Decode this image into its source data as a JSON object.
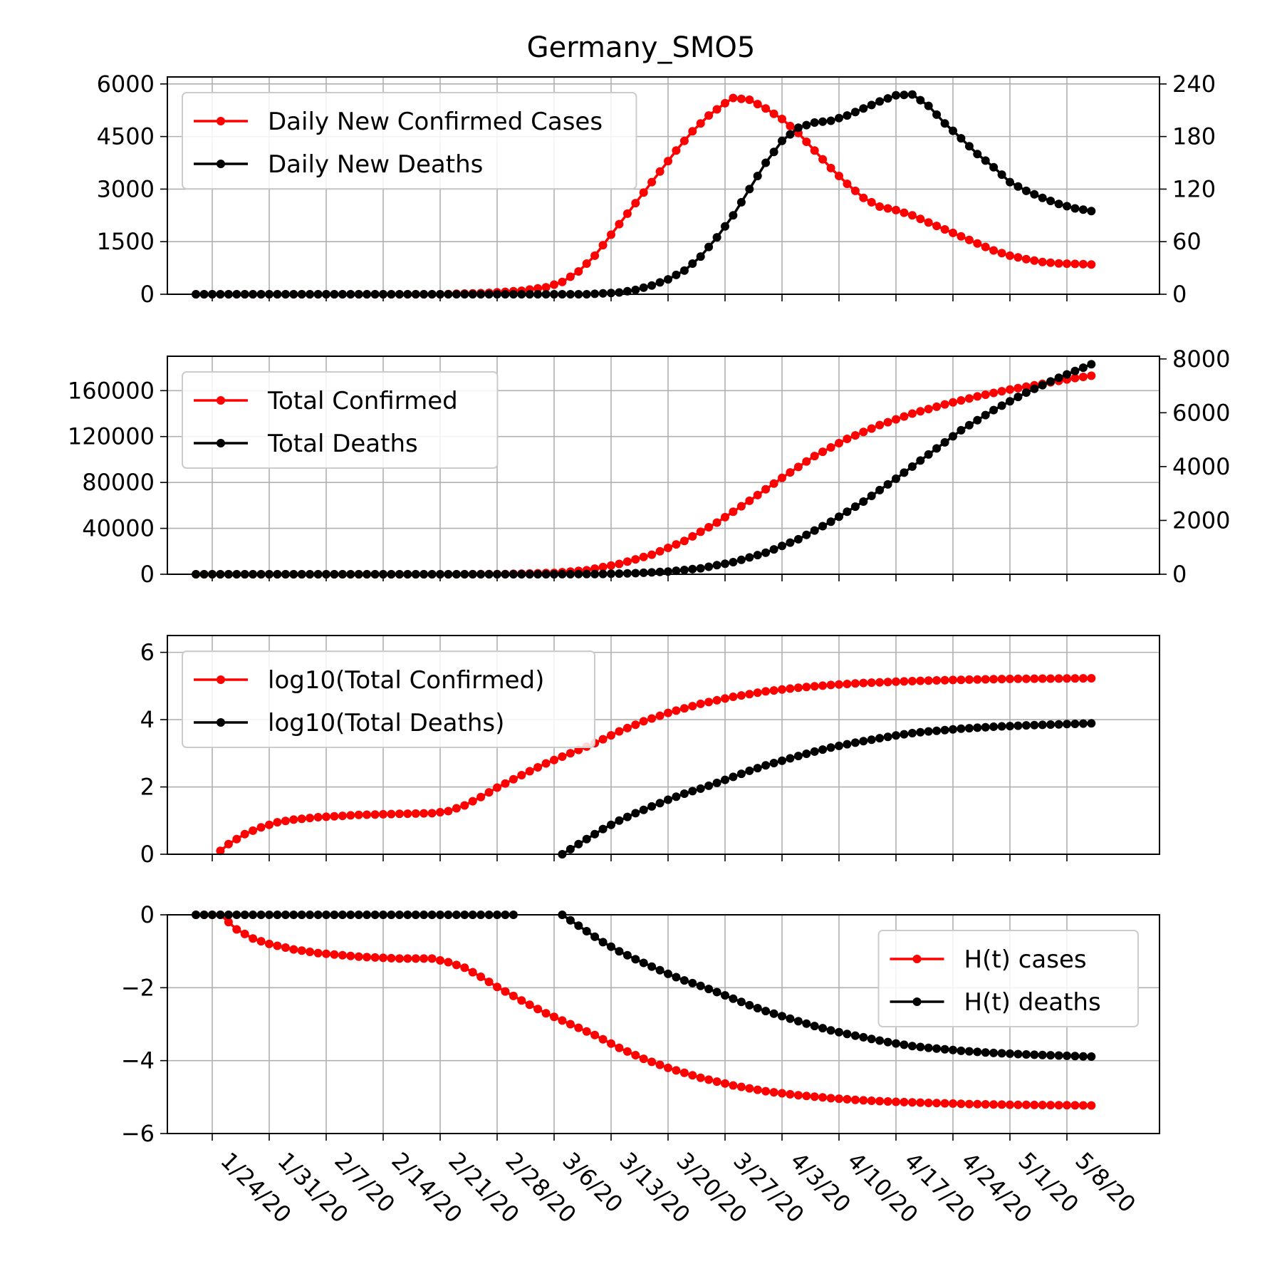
{
  "figure_title": "Germany_SMO5",
  "colors": {
    "cases": "#ff0000",
    "deaths": "#000000",
    "grid": "#b0b0b0"
  },
  "chart_data": [
    {
      "type": "line",
      "panel": "daily",
      "title": "Germany_SMO5",
      "x_start": "1/22/20",
      "x_tick_labels": [
        "1/24/20",
        "1/31/20",
        "2/7/20",
        "2/14/20",
        "2/21/20",
        "2/28/20",
        "3/6/20",
        "3/13/20",
        "3/20/20",
        "3/27/20",
        "4/3/20",
        "4/10/20",
        "4/17/20",
        "4/24/20",
        "5/1/20",
        "5/8/20"
      ],
      "left_axis": {
        "ylim": [
          0,
          6200
        ],
        "ticks": [
          "0",
          "1500",
          "3000",
          "4500",
          "6000"
        ]
      },
      "right_axis": {
        "ylim": [
          0,
          248
        ],
        "ticks": [
          "0",
          "60",
          "120",
          "180",
          "240"
        ]
      },
      "legend_location": "upper left",
      "grid": true,
      "series": [
        {
          "name": "Daily New Confirmed Cases",
          "axis": "left",
          "color": "#ff0000",
          "n": 111,
          "knots": [
            [
              0,
              0
            ],
            [
              30,
              0
            ],
            [
              36,
              40
            ],
            [
              40,
              100
            ],
            [
              43,
              200
            ],
            [
              45,
              350
            ],
            [
              47,
              650
            ],
            [
              49,
              1100
            ],
            [
              51,
              1700
            ],
            [
              53,
              2300
            ],
            [
              55,
              2900
            ],
            [
              57,
              3500
            ],
            [
              59,
              4100
            ],
            [
              61,
              4650
            ],
            [
              63,
              5100
            ],
            [
              65,
              5450
            ],
            [
              66,
              5600
            ],
            [
              68,
              5550
            ],
            [
              70,
              5300
            ],
            [
              72,
              5000
            ],
            [
              74,
              4600
            ],
            [
              76,
              4100
            ],
            [
              78,
              3600
            ],
            [
              80,
              3150
            ],
            [
              82,
              2750
            ],
            [
              84,
              2500
            ],
            [
              86,
              2400
            ],
            [
              88,
              2250
            ],
            [
              90,
              2050
            ],
            [
              92,
              1850
            ],
            [
              94,
              1650
            ],
            [
              96,
              1450
            ],
            [
              98,
              1250
            ],
            [
              100,
              1100
            ],
            [
              102,
              1000
            ],
            [
              104,
              920
            ],
            [
              106,
              880
            ],
            [
              110,
              850
            ]
          ]
        },
        {
          "name": "Daily New Deaths",
          "axis": "right",
          "color": "#000000",
          "n": 111,
          "knots": [
            [
              0,
              0
            ],
            [
              48,
              0
            ],
            [
              50,
              1
            ],
            [
              52,
              2
            ],
            [
              54,
              5
            ],
            [
              56,
              10
            ],
            [
              58,
              17
            ],
            [
              60,
              27
            ],
            [
              62,
              43
            ],
            [
              64,
              65
            ],
            [
              66,
              90
            ],
            [
              68,
              120
            ],
            [
              70,
              150
            ],
            [
              72,
              175
            ],
            [
              74,
              190
            ],
            [
              76,
              196
            ],
            [
              78,
              198
            ],
            [
              80,
              204
            ],
            [
              82,
              212
            ],
            [
              84,
              220
            ],
            [
              86,
              227
            ],
            [
              88,
              228
            ],
            [
              90,
              215
            ],
            [
              92,
              195
            ],
            [
              94,
              178
            ],
            [
              96,
              160
            ],
            [
              98,
              145
            ],
            [
              100,
              128
            ],
            [
              102,
              118
            ],
            [
              104,
              110
            ],
            [
              106,
              103
            ],
            [
              108,
              98
            ],
            [
              110,
              95
            ]
          ]
        }
      ]
    },
    {
      "type": "line",
      "panel": "cumulative",
      "left_axis": {
        "ylim": [
          0,
          190000
        ],
        "ticks": [
          "0",
          "40000",
          "80000",
          "120000",
          "160000"
        ]
      },
      "right_axis": {
        "ylim": [
          0,
          8100
        ],
        "ticks": [
          "0",
          "2000",
          "4000",
          "6000",
          "8000"
        ]
      },
      "legend_location": "upper left",
      "grid": true,
      "series": [
        {
          "name": "Total Confirmed",
          "axis": "left",
          "color": "#ff0000",
          "n": 111,
          "knots": [
            [
              0,
              0
            ],
            [
              32,
              0
            ],
            [
              38,
              200
            ],
            [
              44,
              1200
            ],
            [
              48,
              3500
            ],
            [
              52,
              9000
            ],
            [
              56,
              17000
            ],
            [
              60,
              29000
            ],
            [
              64,
              45000
            ],
            [
              68,
              64000
            ],
            [
              72,
              84000
            ],
            [
              76,
              103000
            ],
            [
              80,
              118000
            ],
            [
              84,
              130000
            ],
            [
              88,
              140000
            ],
            [
              92,
              148000
            ],
            [
              96,
              155000
            ],
            [
              100,
              161000
            ],
            [
              104,
              166000
            ],
            [
              108,
              171000
            ],
            [
              110,
              173000
            ]
          ]
        },
        {
          "name": "Total Deaths",
          "axis": "right",
          "color": "#000000",
          "n": 111,
          "knots": [
            [
              0,
              0
            ],
            [
              44,
              0
            ],
            [
              50,
              10
            ],
            [
              54,
              40
            ],
            [
              58,
              100
            ],
            [
              62,
              220
            ],
            [
              66,
              450
            ],
            [
              70,
              800
            ],
            [
              74,
              1300
            ],
            [
              78,
              1950
            ],
            [
              82,
              2700
            ],
            [
              86,
              3550
            ],
            [
              90,
              4450
            ],
            [
              94,
              5350
            ],
            [
              98,
              6100
            ],
            [
              102,
              6750
            ],
            [
              106,
              7300
            ],
            [
              110,
              7800
            ]
          ]
        }
      ]
    },
    {
      "type": "line",
      "panel": "log10",
      "left_axis": {
        "ylim": [
          0,
          6.5
        ],
        "ticks": [
          "0",
          "2",
          "4",
          "6"
        ]
      },
      "legend_location": "upper left",
      "grid": true,
      "series": [
        {
          "name": "log10(Total Confirmed)",
          "color": "#ff0000",
          "n": 111,
          "start": 3,
          "knots": [
            [
              3,
              0.1
            ],
            [
              4,
              0.3
            ],
            [
              6,
              0.6
            ],
            [
              8,
              0.8
            ],
            [
              10,
              0.95
            ],
            [
              12,
              1.03
            ],
            [
              15,
              1.1
            ],
            [
              20,
              1.17
            ],
            [
              25,
              1.2
            ],
            [
              29,
              1.22
            ],
            [
              31,
              1.28
            ],
            [
              33,
              1.45
            ],
            [
              35,
              1.7
            ],
            [
              37,
              1.98
            ],
            [
              40,
              2.35
            ],
            [
              43,
              2.7
            ],
            [
              46,
              3.0
            ],
            [
              49,
              3.3
            ],
            [
              52,
              3.65
            ],
            [
              55,
              3.95
            ],
            [
              58,
              4.2
            ],
            [
              62,
              4.47
            ],
            [
              66,
              4.68
            ],
            [
              70,
              4.84
            ],
            [
              74,
              4.95
            ],
            [
              78,
              5.03
            ],
            [
              82,
              5.09
            ],
            [
              86,
              5.13
            ],
            [
              90,
              5.16
            ],
            [
              95,
              5.19
            ],
            [
              100,
              5.21
            ],
            [
              105,
              5.22
            ],
            [
              110,
              5.23
            ]
          ]
        },
        {
          "name": "log10(Total Deaths)",
          "color": "#000000",
          "n": 111,
          "start": 45,
          "knots": [
            [
              45,
              0.0
            ],
            [
              46,
              0.15
            ],
            [
              48,
              0.45
            ],
            [
              50,
              0.75
            ],
            [
              52,
              1.0
            ],
            [
              54,
              1.22
            ],
            [
              56,
              1.42
            ],
            [
              58,
              1.62
            ],
            [
              60,
              1.8
            ],
            [
              62,
              1.95
            ],
            [
              64,
              2.12
            ],
            [
              66,
              2.3
            ],
            [
              68,
              2.48
            ],
            [
              70,
              2.64
            ],
            [
              72,
              2.78
            ],
            [
              74,
              2.92
            ],
            [
              76,
              3.05
            ],
            [
              78,
              3.17
            ],
            [
              80,
              3.27
            ],
            [
              82,
              3.36
            ],
            [
              84,
              3.45
            ],
            [
              86,
              3.53
            ],
            [
              88,
              3.6
            ],
            [
              90,
              3.65
            ],
            [
              94,
              3.73
            ],
            [
              98,
              3.79
            ],
            [
              102,
              3.83
            ],
            [
              106,
              3.86
            ],
            [
              110,
              3.89
            ]
          ]
        }
      ]
    },
    {
      "type": "line",
      "panel": "entropy",
      "left_axis": {
        "ylim": [
          -6,
          0
        ],
        "ticks": [
          "0",
          "−2",
          "−4",
          "−6"
        ]
      },
      "legend_location": "upper right",
      "grid": true,
      "series": [
        {
          "name": "H(t) cases",
          "color": "#ff0000",
          "n": 111,
          "knots": [
            [
              0,
              0
            ],
            [
              3,
              0
            ],
            [
              4,
              -0.2
            ],
            [
              5,
              -0.4
            ],
            [
              7,
              -0.65
            ],
            [
              9,
              -0.8
            ],
            [
              12,
              -0.95
            ],
            [
              15,
              -1.05
            ],
            [
              20,
              -1.15
            ],
            [
              25,
              -1.2
            ],
            [
              29,
              -1.2
            ],
            [
              31,
              -1.3
            ],
            [
              33,
              -1.45
            ],
            [
              35,
              -1.7
            ],
            [
              37,
              -1.98
            ],
            [
              40,
              -2.35
            ],
            [
              43,
              -2.7
            ],
            [
              46,
              -3.0
            ],
            [
              49,
              -3.3
            ],
            [
              52,
              -3.65
            ],
            [
              55,
              -3.95
            ],
            [
              58,
              -4.2
            ],
            [
              62,
              -4.47
            ],
            [
              66,
              -4.68
            ],
            [
              70,
              -4.84
            ],
            [
              74,
              -4.95
            ],
            [
              78,
              -5.03
            ],
            [
              82,
              -5.09
            ],
            [
              86,
              -5.13
            ],
            [
              90,
              -5.16
            ],
            [
              95,
              -5.19
            ],
            [
              100,
              -5.21
            ],
            [
              105,
              -5.22
            ],
            [
              110,
              -5.23
            ]
          ]
        },
        {
          "name": "H(t) deaths",
          "color": "#000000",
          "n": 111,
          "gap": [
            40,
            44
          ],
          "knots": [
            [
              0,
              0
            ],
            [
              39,
              0
            ],
            [
              45,
              0
            ],
            [
              46,
              -0.15
            ],
            [
              48,
              -0.45
            ],
            [
              50,
              -0.75
            ],
            [
              52,
              -1.0
            ],
            [
              54,
              -1.22
            ],
            [
              56,
              -1.42
            ],
            [
              58,
              -1.62
            ],
            [
              60,
              -1.8
            ],
            [
              62,
              -1.95
            ],
            [
              64,
              -2.12
            ],
            [
              66,
              -2.3
            ],
            [
              68,
              -2.48
            ],
            [
              70,
              -2.64
            ],
            [
              72,
              -2.78
            ],
            [
              74,
              -2.92
            ],
            [
              76,
              -3.05
            ],
            [
              78,
              -3.17
            ],
            [
              80,
              -3.27
            ],
            [
              82,
              -3.36
            ],
            [
              84,
              -3.45
            ],
            [
              86,
              -3.53
            ],
            [
              88,
              -3.6
            ],
            [
              90,
              -3.65
            ],
            [
              94,
              -3.73
            ],
            [
              98,
              -3.79
            ],
            [
              102,
              -3.83
            ],
            [
              106,
              -3.86
            ],
            [
              110,
              -3.89
            ]
          ]
        }
      ]
    }
  ]
}
